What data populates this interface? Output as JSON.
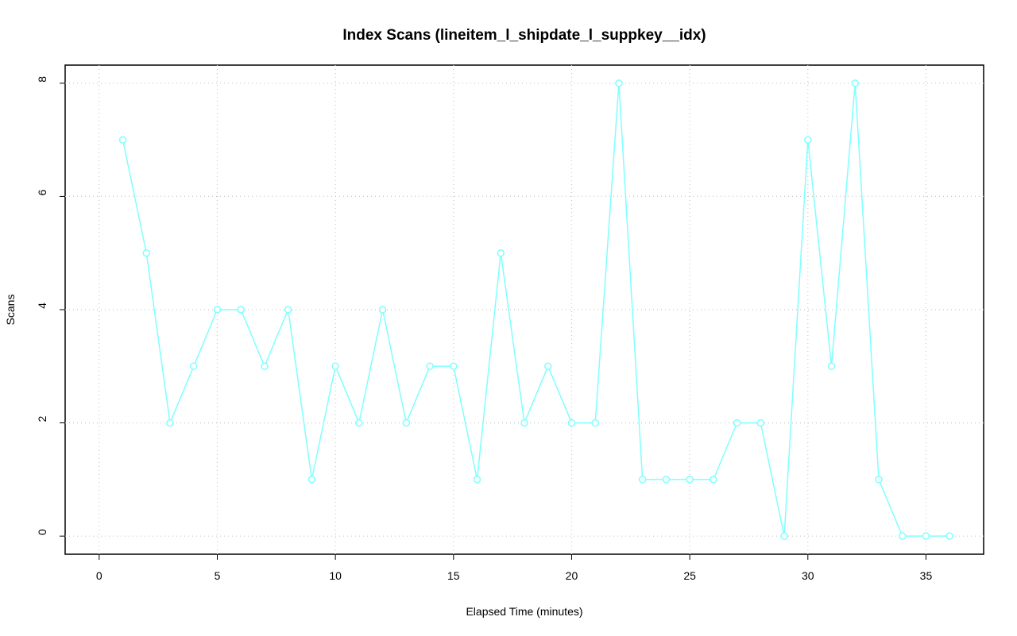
{
  "chart_data": {
    "type": "line",
    "title": "Index Scans (lineitem_l_shipdate_l_suppkey__idx)",
    "xlabel": "Elapsed Time (minutes)",
    "ylabel": "Scans",
    "x": [
      1,
      2,
      3,
      4,
      5,
      6,
      7,
      8,
      9,
      10,
      11,
      12,
      13,
      14,
      15,
      16,
      17,
      18,
      19,
      20,
      21,
      22,
      23,
      24,
      25,
      26,
      27,
      28,
      29,
      30,
      31,
      32,
      33,
      34,
      35,
      36
    ],
    "values": [
      7,
      5,
      2,
      3,
      4,
      4,
      3,
      4,
      1,
      3,
      2,
      4,
      2,
      3,
      3,
      1,
      5,
      2,
      3,
      2,
      2,
      8,
      1,
      1,
      1,
      1,
      2,
      2,
      0,
      7,
      3,
      8,
      1,
      0,
      0,
      0
    ],
    "color": "#7fffff",
    "xlim": [
      -1.44,
      37.44
    ],
    "xticks": [
      0,
      5,
      10,
      15,
      20,
      25,
      30,
      35
    ],
    "ylim": [
      -0.32,
      8.32
    ],
    "yticks": [
      0,
      2,
      4,
      6,
      8
    ],
    "grid": true
  }
}
